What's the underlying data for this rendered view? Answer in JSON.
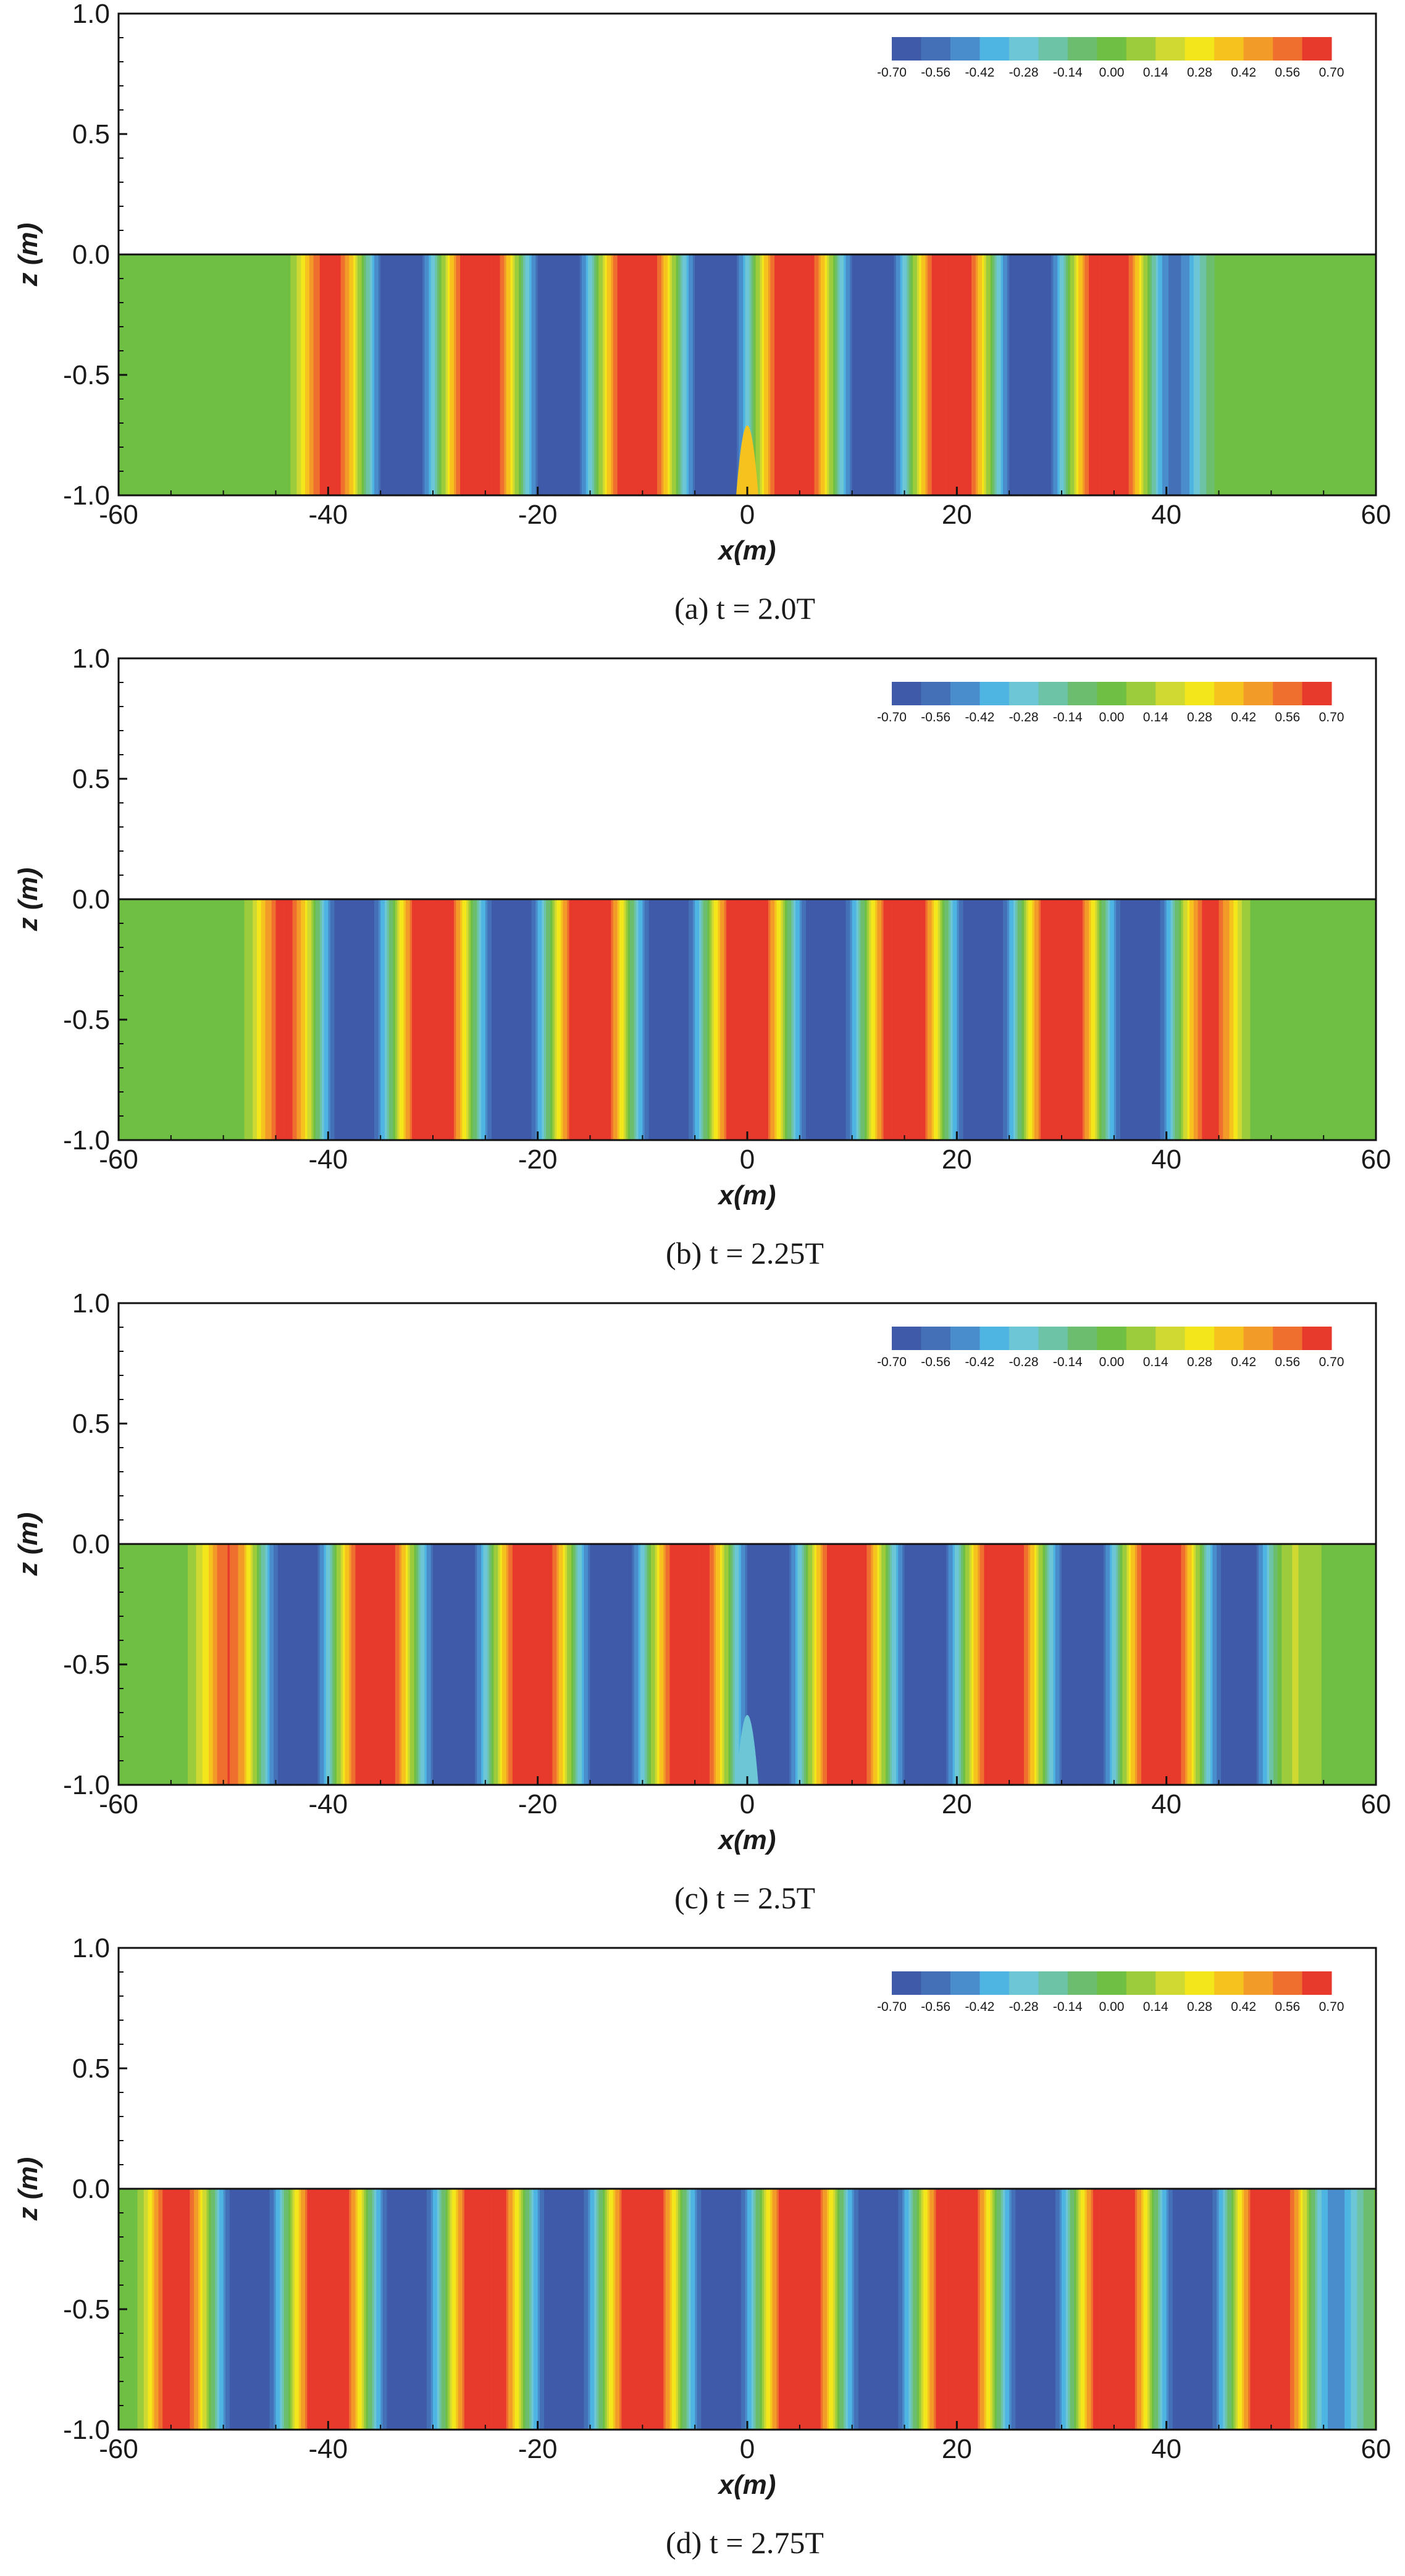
{
  "figure": {
    "colorbar_ticks": [
      "-0.70",
      "-0.56",
      "-0.42",
      "-0.28",
      "-0.14",
      "0.00",
      "0.14",
      "0.28",
      "0.42",
      "0.56",
      "0.70"
    ],
    "colorbar_colors": [
      "#3e5aa8",
      "#4470b8",
      "#4a8dcc",
      "#4eb4e2",
      "#6cc6d6",
      "#6cc3a6",
      "#6cbd6e",
      "#6fbf44",
      "#9ccb3c",
      "#cfd932",
      "#f3e71c",
      "#f6c21e",
      "#f29b28",
      "#ef6f2e",
      "#e8392d"
    ],
    "y_ticks": [
      "1.0",
      "0.5",
      "0.0",
      "-0.5",
      "-1.0"
    ],
    "x_ticks": [
      "-60",
      "-40",
      "-20",
      "0",
      "20",
      "40",
      "60"
    ],
    "z_label": "z (m)",
    "x_label": "x(m)"
  },
  "chart_data": [
    {
      "type": "heatmap",
      "caption": "(a) t = 2.0T",
      "xlabel": "x(m)",
      "ylabel": "z (m)",
      "xlim": [
        -60,
        60
      ],
      "ylim": [
        -1.0,
        1.0
      ],
      "fluid_domain": {
        "z_top": 0.0,
        "z_bottom": -1.0
      },
      "colorbar_range": [
        -0.7,
        0.7
      ],
      "field": {
        "envelope_edges": [
          -42,
          42
        ],
        "band_period": 15,
        "phase_x_of_max": -25.5,
        "amplitude": 0.7,
        "center_dip_value": 0.35
      }
    },
    {
      "type": "heatmap",
      "caption": "(b) t = 2.25T",
      "xlabel": "x(m)",
      "ylabel": "z (m)",
      "xlim": [
        -60,
        60
      ],
      "ylim": [
        -1.0,
        1.0
      ],
      "fluid_domain": {
        "z_top": 0.0,
        "z_bottom": -1.0
      },
      "colorbar_range": [
        -0.7,
        0.7
      ],
      "field": {
        "envelope_edges": [
          -46,
          46
        ],
        "band_period": 15,
        "phase_x_of_max": -30,
        "amplitude": 0.7
      }
    },
    {
      "type": "heatmap",
      "caption": "(c) t = 2.5T",
      "xlabel": "x(m)",
      "ylabel": "z (m)",
      "xlim": [
        -60,
        60
      ],
      "ylim": [
        -1.0,
        1.0
      ],
      "fluid_domain": {
        "z_top": 0.0,
        "z_bottom": -1.0
      },
      "colorbar_range": [
        -0.7,
        0.7
      ],
      "field": {
        "envelope_edges": [
          -51,
          51
        ],
        "band_period": 15,
        "phase_x_of_max": -35.5,
        "amplitude": 0.7,
        "center_dip_value": -0.25
      }
    },
    {
      "type": "heatmap",
      "caption": "(d) t = 2.75T",
      "xlabel": "x(m)",
      "ylabel": "z (m)",
      "xlim": [
        -60,
        60
      ],
      "ylim": [
        -1.0,
        1.0
      ],
      "fluid_domain": {
        "z_top": 0.0,
        "z_bottom": -1.0
      },
      "colorbar_range": [
        -0.7,
        0.7
      ],
      "field": {
        "envelope_edges": [
          -57,
          57
        ],
        "band_period": 15,
        "phase_x_of_max": -40,
        "amplitude": 0.7
      }
    }
  ]
}
